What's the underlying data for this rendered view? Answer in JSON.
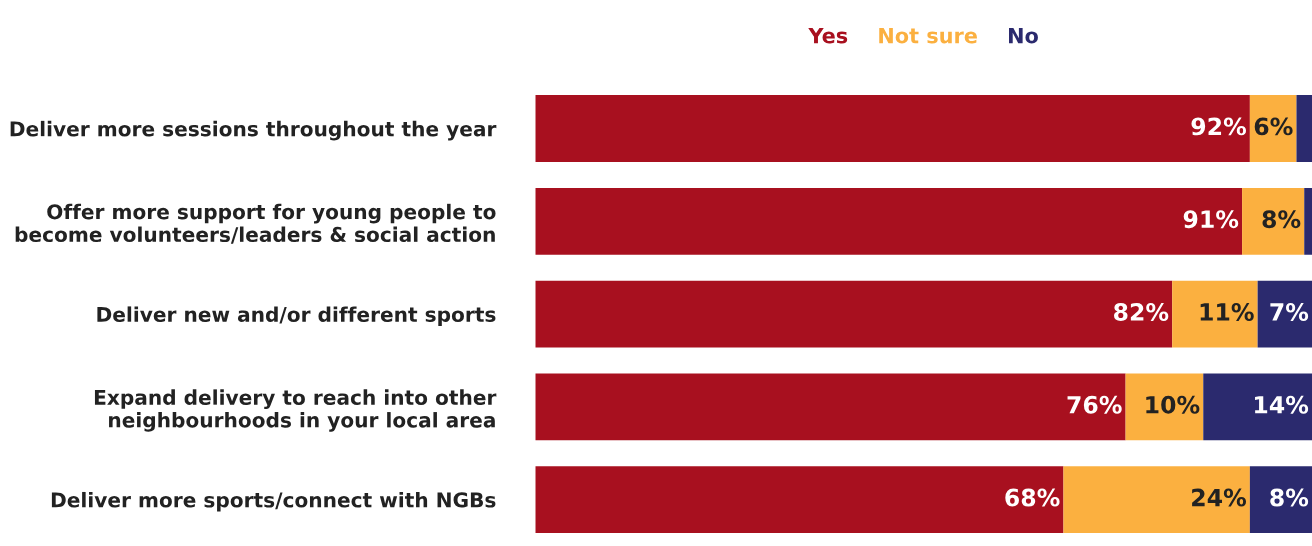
{
  "chart_data": {
    "type": "bar",
    "orientation": "horizontal",
    "stacked": true,
    "categories": [
      "Deliver more sessions throughout the year",
      "Offer more support for young people to\nbecome volunteers/leaders & social action",
      "Deliver new and/or different sports",
      "Expand delivery to reach into other\nneighbourhoods in your local area",
      "Deliver more sports/connect with NGBs"
    ],
    "series": [
      {
        "name": "Yes",
        "color": "#a8101f",
        "values": [
          92,
          91,
          82,
          76,
          68
        ],
        "value_labels": [
          "92%",
          "91%",
          "82%",
          "76%",
          "68%"
        ]
      },
      {
        "name": "Not sure",
        "color": "#fbb040",
        "values": [
          6,
          8,
          11,
          10,
          24
        ],
        "value_labels": [
          "6%",
          "8%",
          "11%",
          "10%",
          "24%"
        ]
      },
      {
        "name": "No",
        "color": "#2b2a6e",
        "values": [
          2,
          1,
          7,
          14,
          8
        ],
        "value_labels": [
          null,
          null,
          "7%",
          "14%",
          "8%"
        ]
      }
    ],
    "xlim": [
      0,
      100
    ],
    "tick_labels": "y",
    "legend": "top",
    "grid": false
  }
}
